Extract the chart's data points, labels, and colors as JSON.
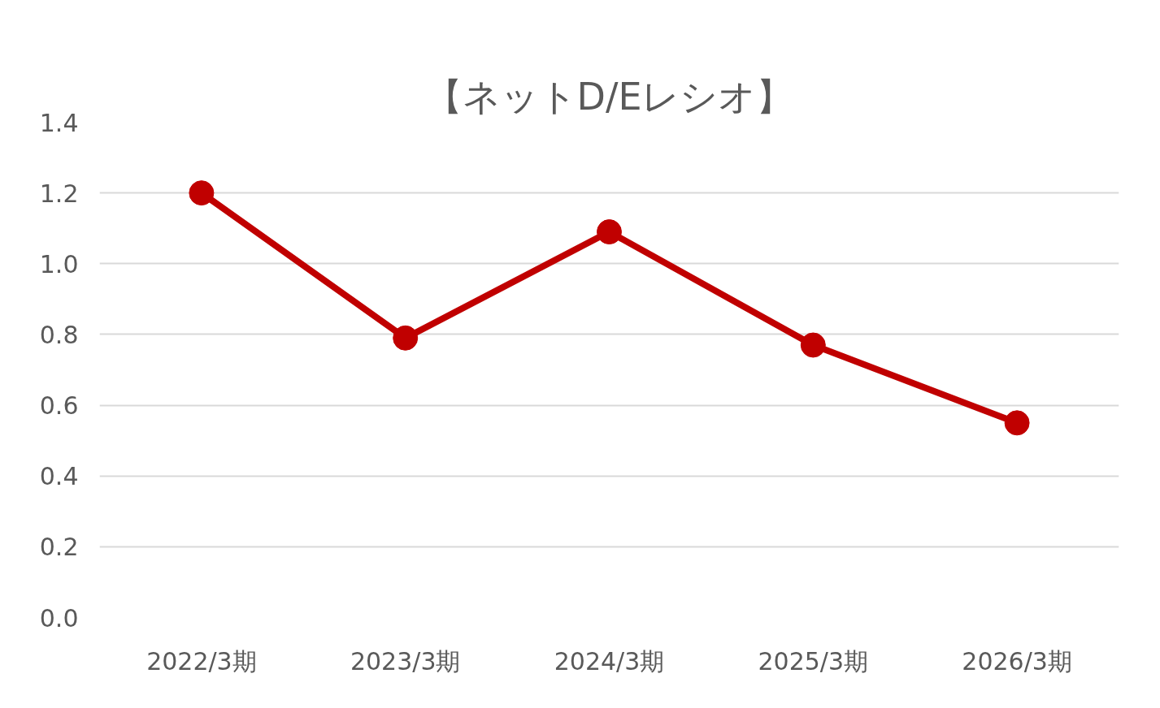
{
  "chart_data": {
    "type": "line",
    "title": "【ネットD/Eレシオ】",
    "categories": [
      "2022/3期",
      "2023/3期",
      "2024/3期",
      "2025/3期",
      "2026/3期"
    ],
    "series": [
      {
        "color": "#c00000",
        "values": [
          1.2,
          0.79,
          1.09,
          0.77,
          0.55
        ]
      }
    ],
    "ylim": [
      0,
      1.4
    ],
    "yticks": [
      {
        "value": 0,
        "label": "0.0"
      },
      {
        "value": 0.2,
        "label": "0.2"
      },
      {
        "value": 0.4,
        "label": "0.4"
      },
      {
        "value": 0.6,
        "label": "0.6"
      },
      {
        "value": 0.8,
        "label": "0.8"
      },
      {
        "value": 1.0,
        "label": "1.0"
      },
      {
        "value": 1.2,
        "label": "1.2"
      },
      {
        "value": 1.4,
        "label": "1.4"
      }
    ],
    "grid": "y",
    "marker": "circle",
    "line_style": "solid"
  }
}
